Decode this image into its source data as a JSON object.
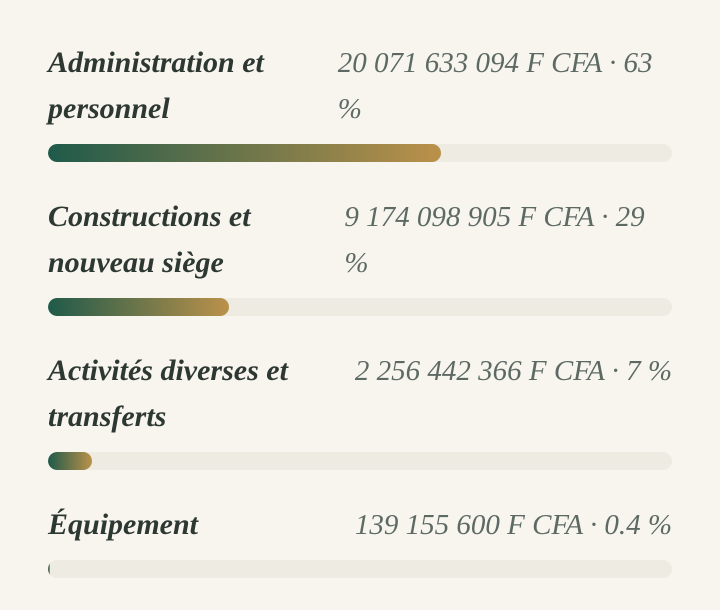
{
  "items": [
    {
      "label": "Administration et personnel",
      "amount": "20 071 633 094 F CFA · 63 %",
      "percent": 63
    },
    {
      "label": "Constructions et nouveau siège",
      "amount": "9 174 098 905 F CFA · 29 %",
      "percent": 29
    },
    {
      "label": "Activités diverses et transferts",
      "amount": "2 256 442 366 F CFA · 7 %",
      "percent": 7
    },
    {
      "label": "Équipement",
      "amount": "139 155 600 F CFA · 0.4 %",
      "percent": 0.4
    }
  ]
}
